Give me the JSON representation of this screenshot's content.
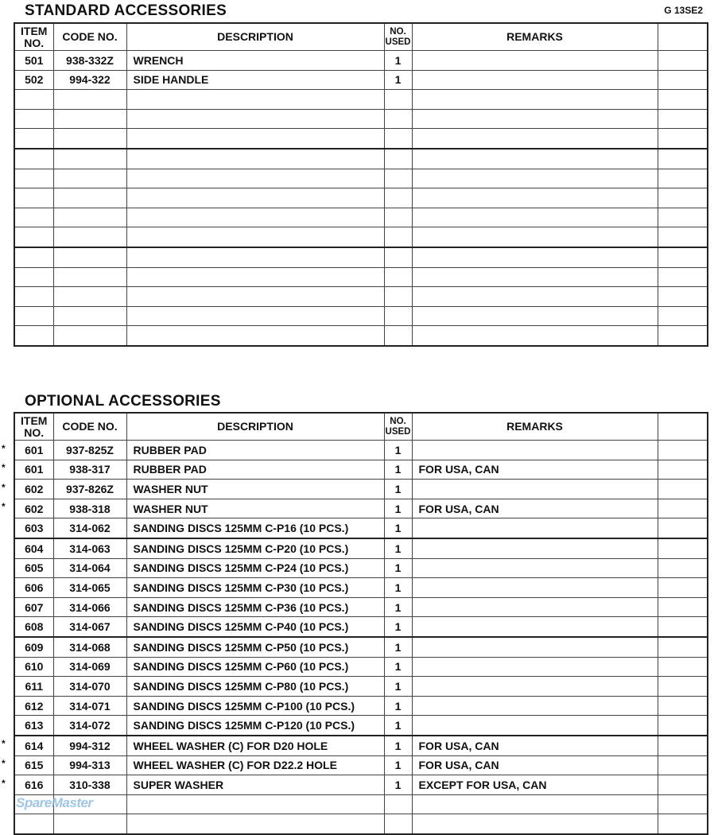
{
  "page_id": "G 13SE2",
  "columns": {
    "item": "ITEM NO.",
    "code": "CODE NO.",
    "description": "DESCRIPTION",
    "used": "NO. USED",
    "remarks": "REMARKS"
  },
  "standard": {
    "title": "STANDARD  ACCESSORIES",
    "rows": [
      {
        "item": "501",
        "code": "938-332Z",
        "description": "WRENCH",
        "used": "1",
        "remarks": ""
      },
      {
        "item": "502",
        "code": "994-322",
        "description": "SIDE HANDLE",
        "used": "1",
        "remarks": ""
      }
    ]
  },
  "optional": {
    "title": "OPTIONAL  ACCESSORIES",
    "rows": [
      {
        "star": "*",
        "item": "601",
        "code": "937-825Z",
        "description": "RUBBER PAD",
        "used": "1",
        "remarks": ""
      },
      {
        "star": "*",
        "item": "601",
        "code": "938-317",
        "description": "RUBBER PAD",
        "used": "1",
        "remarks": "FOR USA, CAN"
      },
      {
        "star": "*",
        "item": "602",
        "code": "937-826Z",
        "description": "WASHER NUT",
        "used": "1",
        "remarks": ""
      },
      {
        "star": "*",
        "item": "602",
        "code": "938-318",
        "description": "WASHER NUT",
        "used": "1",
        "remarks": "FOR USA, CAN"
      },
      {
        "item": "603",
        "code": "314-062",
        "description": "SANDING DISCS 125MM C-P16 (10 PCS.)",
        "used": "1",
        "remarks": ""
      },
      {
        "item": "604",
        "code": "314-063",
        "description": "SANDING DISCS 125MM C-P20 (10 PCS.)",
        "used": "1",
        "remarks": ""
      },
      {
        "item": "605",
        "code": "314-064",
        "description": "SANDING DISCS 125MM C-P24 (10 PCS.)",
        "used": "1",
        "remarks": ""
      },
      {
        "item": "606",
        "code": "314-065",
        "description": "SANDING DISCS 125MM C-P30 (10 PCS.)",
        "used": "1",
        "remarks": ""
      },
      {
        "item": "607",
        "code": "314-066",
        "description": "SANDING DISCS 125MM C-P36 (10 PCS.)",
        "used": "1",
        "remarks": ""
      },
      {
        "item": "608",
        "code": "314-067",
        "description": "SANDING DISCS 125MM C-P40 (10 PCS.)",
        "used": "1",
        "remarks": ""
      },
      {
        "item": "609",
        "code": "314-068",
        "description": "SANDING DISCS 125MM C-P50 (10 PCS.)",
        "used": "1",
        "remarks": ""
      },
      {
        "item": "610",
        "code": "314-069",
        "description": "SANDING DISCS 125MM C-P60 (10 PCS.)",
        "used": "1",
        "remarks": ""
      },
      {
        "item": "611",
        "code": "314-070",
        "description": "SANDING DISCS 125MM C-P80 (10 PCS.)",
        "used": "1",
        "remarks": ""
      },
      {
        "item": "612",
        "code": "314-071",
        "description": "SANDING DISCS 125MM C-P100 (10 PCS.)",
        "used": "1",
        "remarks": ""
      },
      {
        "item": "613",
        "code": "314-072",
        "description": "SANDING DISCS 125MM C-P120 (10 PCS.)",
        "used": "1",
        "remarks": ""
      },
      {
        "star": "*",
        "item": "614",
        "code": "994-312",
        "description": "WHEEL WASHER (C) FOR D20 HOLE",
        "used": "1",
        "remarks": "FOR USA, CAN"
      },
      {
        "star": "*",
        "item": "615",
        "code": "994-313",
        "description": "WHEEL WASHER (C) FOR D22.2 HOLE",
        "used": "1",
        "remarks": "FOR USA, CAN"
      },
      {
        "star": "*",
        "item": "616",
        "code": "310-338",
        "description": "SUPER WASHER",
        "used": "1",
        "remarks": "EXCEPT FOR USA, CAN"
      }
    ]
  },
  "watermark": "SpareMaster"
}
